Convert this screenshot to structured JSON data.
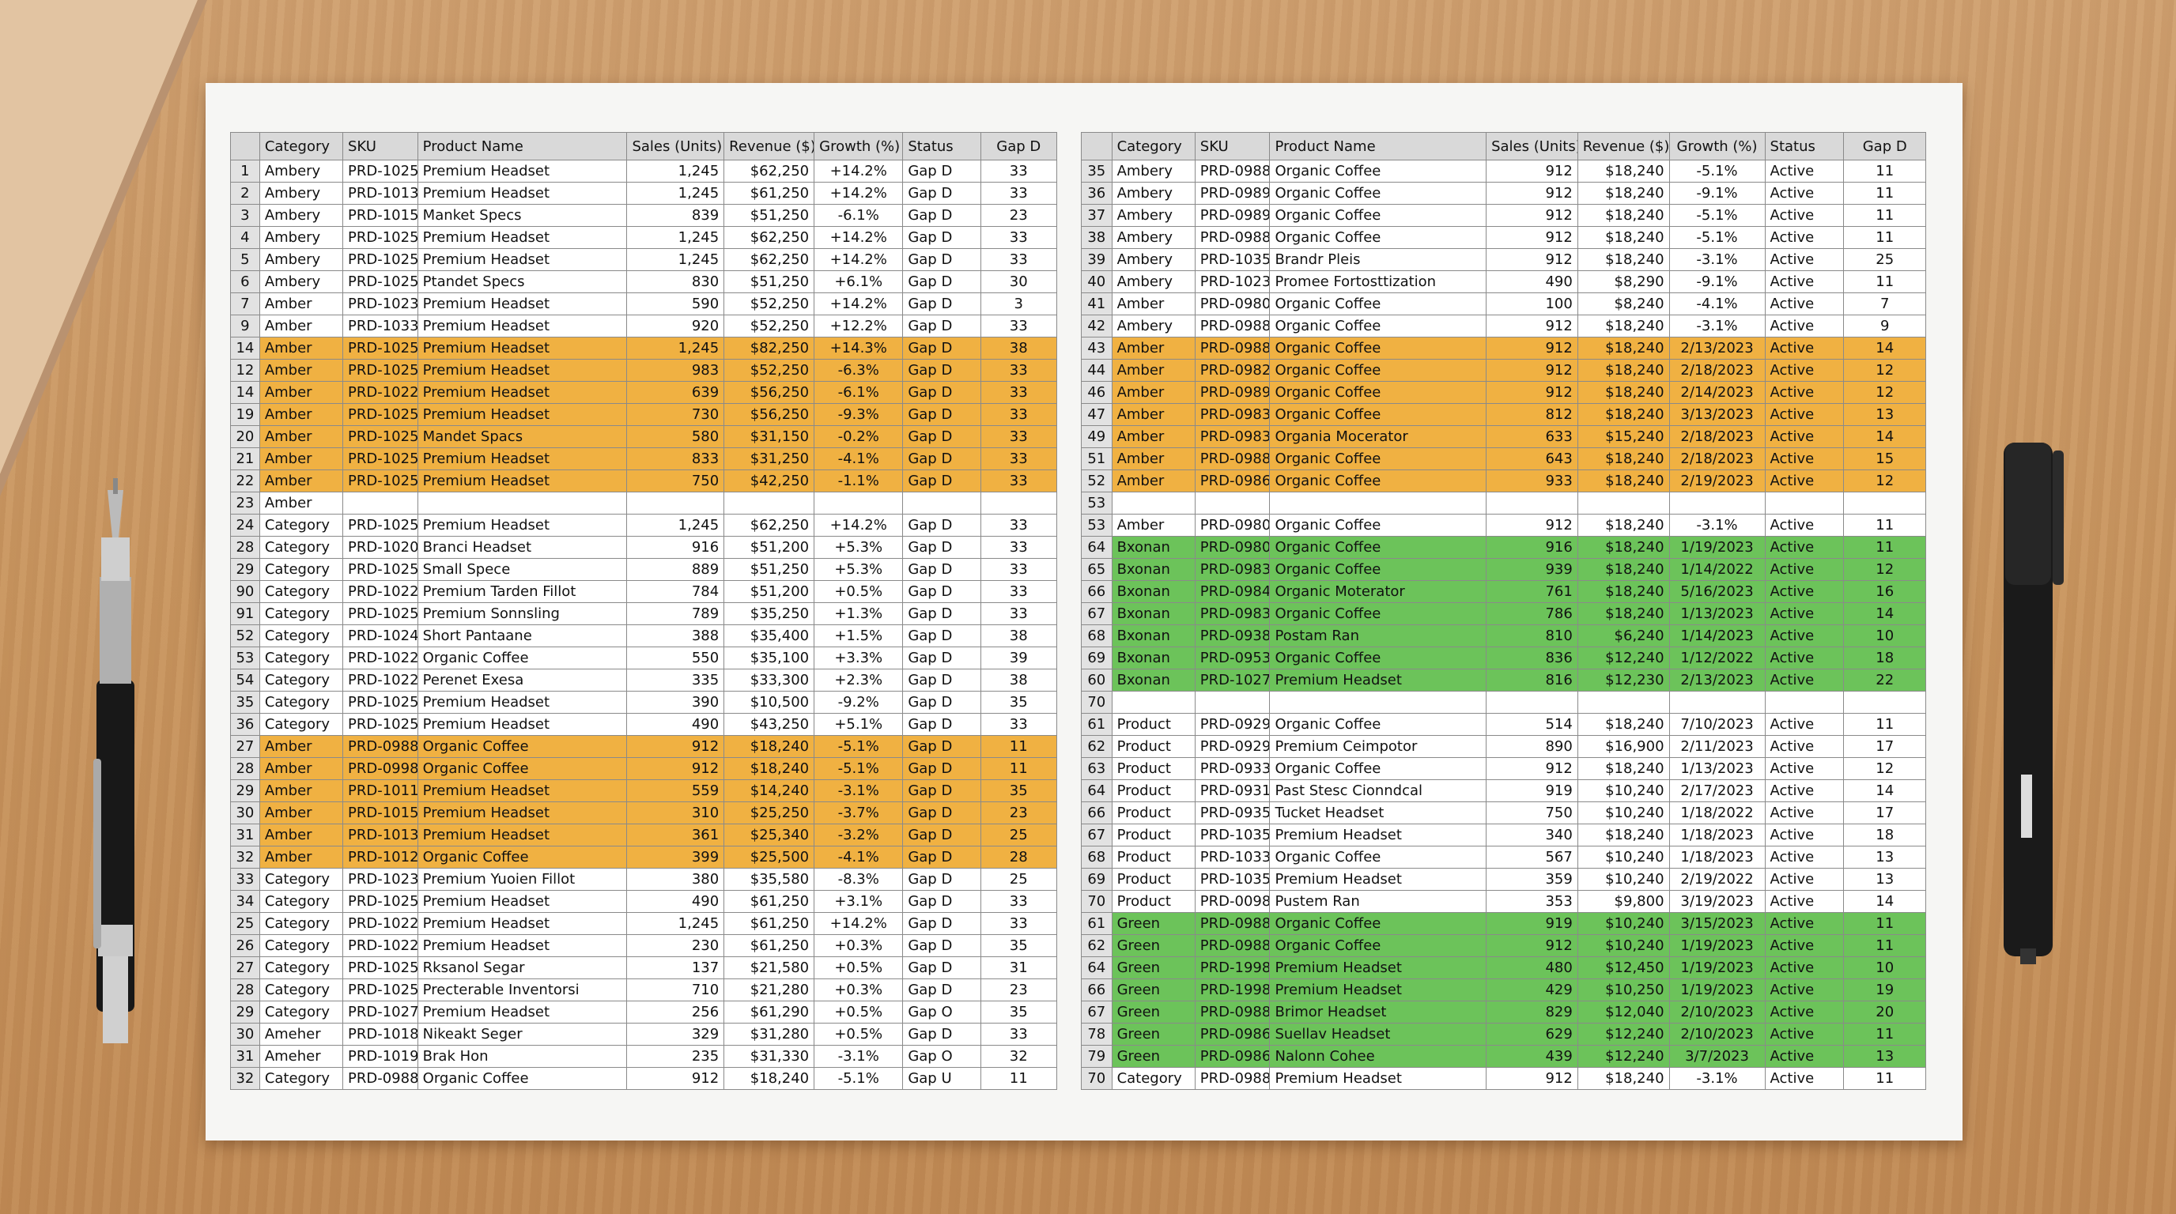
{
  "tables": [
    {
      "headers": [
        null,
        "Category",
        "SKU",
        "Product Name",
        "Sales (Units)",
        "Revenue ($)",
        "Growth (%)",
        "Status",
        "Gap D"
      ],
      "rows": [
        [
          "1",
          "Ambery",
          "PRD-1025",
          "Premium Headset",
          "1,245",
          "$62,250",
          "+14.2%",
          "Gap D",
          "33"
        ],
        [
          "2",
          "Ambery",
          "PRD-1013",
          "Premium Headset",
          "1,245",
          "$61,250",
          "+14.2%",
          "Gap D",
          "33"
        ],
        [
          "3",
          "Ambery",
          "PRD-1015",
          "Manket Specs",
          "839",
          "$51,250",
          "-6.1%",
          "Gap D",
          "23"
        ],
        [
          "4",
          "Ambery",
          "PRD-1025",
          "Premium Headset",
          "1,245",
          "$62,250",
          "+14.2%",
          "Gap D",
          "33"
        ],
        [
          "5",
          "Ambery",
          "PRD-1025",
          "Premium Headset",
          "1,245",
          "$62,250",
          "+14.2%",
          "Gap D",
          "33"
        ],
        [
          "6",
          "Ambery",
          "PRD-1025",
          "Ptandet Specs",
          "830",
          "$51,250",
          "+6.1%",
          "Gap D",
          "30"
        ],
        [
          "7",
          "Amber",
          "PRD-1023",
          "Premium Headset",
          "590",
          "$52,250",
          "+14.2%",
          "Gap D",
          "3"
        ],
        [
          "9",
          "Amber",
          "PRD-1033",
          "Premium Headset",
          "920",
          "$52,250",
          "+12.2%",
          "Gap D",
          "33"
        ],
        [
          "14",
          "Amber",
          "PRD-1025",
          "Premium Headset",
          "1,245",
          "$82,250",
          "+14.3%",
          "Gap D",
          "38"
        ],
        [
          "12",
          "Amber",
          "PRD-1025",
          "Premium Headset",
          "983",
          "$52,250",
          "-6.3%",
          "Gap D",
          "33"
        ],
        [
          "14",
          "Amber",
          "PRD-1022",
          "Premium Headset",
          "639",
          "$56,250",
          "-6.1%",
          "Gap D",
          "33"
        ],
        [
          "19",
          "Amber",
          "PRD-1025",
          "Premium Headset",
          "730",
          "$56,250",
          "-9.3%",
          "Gap D",
          "33"
        ],
        [
          "20",
          "Amber",
          "PRD-1025",
          "Mandet Spacs",
          "580",
          "$31,150",
          "-0.2%",
          "Gap D",
          "33"
        ],
        [
          "21",
          "Amber",
          "PRD-1025",
          "Premium Headset",
          "833",
          "$31,250",
          "-4.1%",
          "Gap D",
          "33"
        ],
        [
          "22",
          "Amber",
          "PRD-1025",
          "Premium Headset",
          "750",
          "$42,250",
          "-1.1%",
          "Gap D",
          "33"
        ],
        [
          "23",
          "Amber",
          null,
          null,
          null,
          null,
          null,
          null,
          null
        ],
        [
          "24",
          "Category",
          "PRD-1025",
          "Premium Headset",
          "1,245",
          "$62,250",
          "+14.2%",
          "Gap D",
          "33"
        ],
        [
          "28",
          "Category",
          "PRD-1020",
          "Branci Headset",
          "916",
          "$51,200",
          "+5.3%",
          "Gap D",
          "33"
        ],
        [
          "29",
          "Category",
          "PRD-1025",
          "Small Spece",
          "889",
          "$51,250",
          "+5.3%",
          "Gap D",
          "33"
        ],
        [
          "90",
          "Category",
          "PRD-1022",
          "Premium Tarden Fillot",
          "784",
          "$51,200",
          "+0.5%",
          "Gap D",
          "33"
        ],
        [
          "91",
          "Category",
          "PRD-1025",
          "Premium Sonnsling",
          "789",
          "$35,250",
          "+1.3%",
          "Gap D",
          "33"
        ],
        [
          "52",
          "Category",
          "PRD-1024",
          "Short Pantaane",
          "388",
          "$35,400",
          "+1.5%",
          "Gap D",
          "38"
        ],
        [
          "53",
          "Category",
          "PRD-1022",
          "Organic Coffee",
          "550",
          "$35,100",
          "+3.3%",
          "Gap D",
          "39"
        ],
        [
          "54",
          "Category",
          "PRD-1022",
          "Perenet Exesa",
          "335",
          "$33,300",
          "+2.3%",
          "Gap D",
          "38"
        ],
        [
          "35",
          "Category",
          "PRD-1025",
          "Premium Headset",
          "390",
          "$10,500",
          "-9.2%",
          "Gap D",
          "35"
        ],
        [
          "36",
          "Category",
          "PRD-1025",
          "Premium Headset",
          "490",
          "$43,250",
          "+5.1%",
          "Gap D",
          "33"
        ],
        [
          "27",
          "Amber",
          "PRD-0988",
          "Organic Coffee",
          "912",
          "$18,240",
          "-5.1%",
          "Gap D",
          "11"
        ],
        [
          "28",
          "Amber",
          "PRD-0998",
          "Organic Coffee",
          "912",
          "$18,240",
          "-5.1%",
          "Gap D",
          "11"
        ],
        [
          "29",
          "Amber",
          "PRD-1011",
          "Premium Headset",
          "559",
          "$14,240",
          "-3.1%",
          "Gap D",
          "35"
        ],
        [
          "30",
          "Amber",
          "PRD-1015",
          "Premium Headset",
          "310",
          "$25,250",
          "-3.7%",
          "Gap D",
          "23"
        ],
        [
          "31",
          "Amber",
          "PRD-1013",
          "Premium Headset",
          "361",
          "$25,340",
          "-3.2%",
          "Gap D",
          "25"
        ],
        [
          "32",
          "Amber",
          "PRD-1012",
          "Organic Coffee",
          "399",
          "$25,500",
          "-4.1%",
          "Gap D",
          "28"
        ],
        [
          "33",
          "Category",
          "PRD-1023",
          "Premium Yuoien Fillot",
          "380",
          "$35,580",
          "-8.3%",
          "Gap D",
          "25"
        ],
        [
          "34",
          "Category",
          "PRD-1025",
          "Premium Headset",
          "490",
          "$61,250",
          "+3.1%",
          "Gap D",
          "33"
        ],
        [
          "25",
          "Category",
          "PRD-1022",
          "Premium Headset",
          "1,245",
          "$61,250",
          "+14.2%",
          "Gap D",
          "33"
        ],
        [
          "26",
          "Category",
          "PRD-1022",
          "Premium Headset",
          "230",
          "$61,250",
          "+0.3%",
          "Gap D",
          "35"
        ],
        [
          "27",
          "Category",
          "PRD-1025",
          "Rksanol Segar",
          "137",
          "$21,580",
          "+0.5%",
          "Gap D",
          "31"
        ],
        [
          "28",
          "Category",
          "PRD-1025",
          "Precterable Inventorsi",
          "710",
          "$21,280",
          "+0.3%",
          "Gap D",
          "23"
        ],
        [
          "29",
          "Category",
          "PRD-1027",
          "Premium Headset",
          "256",
          "$61,290",
          "+0.5%",
          "Gap O",
          "35"
        ],
        [
          "30",
          "Ameher",
          "PRD-1018",
          "Nikeakt Seger",
          "329",
          "$31,280",
          "+0.5%",
          "Gap D",
          "33"
        ],
        [
          "31",
          "Ameher",
          "PRD-1019",
          "Brak Hon",
          "235",
          "$31,330",
          "-3.1%",
          "Gap O",
          "32"
        ],
        [
          "32",
          "Category",
          "PRD-0988",
          "Organic Coffee",
          "912",
          "$18,240",
          "-5.1%",
          "Gap U",
          "11"
        ]
      ],
      "row_colors": [
        "#ffffff",
        "#ffffff",
        "#ffffff",
        "#ffffff",
        "#ffffff",
        "#ffffff",
        "#ffffff",
        "#ffffff",
        "#f0b142",
        "#f0b142",
        "#f0b142",
        "#f0b142",
        "#f0b142",
        "#f0b142",
        "#f0b142",
        "#ffffff",
        "#ffffff",
        "#ffffff",
        "#ffffff",
        "#ffffff",
        "#ffffff",
        "#ffffff",
        "#ffffff",
        "#ffffff",
        "#ffffff",
        "#ffffff",
        "#f0b142",
        "#f0b142",
        "#f0b142",
        "#f0b142",
        "#f0b142",
        "#f0b142",
        "#ffffff",
        "#ffffff",
        "#ffffff",
        "#ffffff",
        "#ffffff",
        "#ffffff",
        "#ffffff",
        "#ffffff",
        "#ffffff",
        "#ffffff"
      ]
    },
    {
      "headers": [
        null,
        "Category",
        "SKU",
        "Product Name",
        "Sales (Units)",
        "Revenue ($)",
        "Growth (%)",
        "Status",
        "Gap D"
      ],
      "rows": [
        [
          "35",
          "Ambery",
          "PRD-0988",
          "Organic Coffee",
          "912",
          "$18,240",
          "-5.1%",
          "Active",
          "11"
        ],
        [
          "36",
          "Ambery",
          "PRD-0989",
          "Organic Coffee",
          "912",
          "$18,240",
          "-9.1%",
          "Active",
          "11"
        ],
        [
          "37",
          "Ambery",
          "PRD-0989",
          "Organic Coffee",
          "912",
          "$18,240",
          "-5.1%",
          "Active",
          "11"
        ],
        [
          "38",
          "Ambery",
          "PRD-0988",
          "Organic Coffee",
          "912",
          "$18,240",
          "-5.1%",
          "Active",
          "11"
        ],
        [
          "39",
          "Ambery",
          "PRD-1035",
          "Brandr Pleis",
          "912",
          "$18,240",
          "-3.1%",
          "Active",
          "25"
        ],
        [
          "40",
          "Ambery",
          "PRD-1023",
          "Promee Fortosttization",
          "490",
          "$8,290",
          "-9.1%",
          "Active",
          "11"
        ],
        [
          "41",
          "Amber",
          "PRD-0980",
          "Organic Coffee",
          "100",
          "$8,240",
          "-4.1%",
          "Active",
          "7"
        ],
        [
          "42",
          "Ambery",
          "PRD-0988",
          "Organic Coffee",
          "912",
          "$18,240",
          "-3.1%",
          "Active",
          "9"
        ],
        [
          "43",
          "Amber",
          "PRD-0988",
          "Organic Coffee",
          "912",
          "$18,240",
          "2/13/2023",
          "Active",
          "14"
        ],
        [
          "44",
          "Amber",
          "PRD-0982",
          "Organic Coffee",
          "912",
          "$18,240",
          "2/18/2023",
          "Active",
          "12"
        ],
        [
          "46",
          "Amber",
          "PRD-0989",
          "Organic Coffee",
          "912",
          "$18,240",
          "2/14/2023",
          "Active",
          "12"
        ],
        [
          "47",
          "Amber",
          "PRD-0983",
          "Organic Coffee",
          "812",
          "$18,240",
          "3/13/2023",
          "Active",
          "13"
        ],
        [
          "49",
          "Amber",
          "PRD-0983",
          "Organia Mocerator",
          "633",
          "$15,240",
          "2/18/2023",
          "Active",
          "14"
        ],
        [
          "51",
          "Amber",
          "PRD-0988",
          "Organic Coffee",
          "643",
          "$18,240",
          "2/18/2023",
          "Active",
          "15"
        ],
        [
          "52",
          "Amber",
          "PRD-0986",
          "Organic Coffee",
          "933",
          "$18,240",
          "2/19/2023",
          "Active",
          "12"
        ],
        [
          "53",
          null,
          null,
          null,
          null,
          null,
          null,
          null,
          null
        ],
        [
          "53",
          "Amber",
          "PRD-0980",
          "Organic Coffee",
          "912",
          "$18,240",
          "-3.1%",
          "Active",
          "11"
        ],
        [
          "64",
          "Bxonan",
          "PRD-0980",
          "Organic Coffee",
          "916",
          "$18,240",
          "1/19/2023",
          "Active",
          "11"
        ],
        [
          "65",
          "Bxonan",
          "PRD-0983",
          "Organic Coffee",
          "939",
          "$18,240",
          "1/14/2022",
          "Active",
          "12"
        ],
        [
          "66",
          "Bxonan",
          "PRD-0984",
          "Organic Moterator",
          "761",
          "$18,240",
          "5/16/2023",
          "Active",
          "16"
        ],
        [
          "67",
          "Bxonan",
          "PRD-0983",
          "Organic Coffee",
          "786",
          "$18,240",
          "1/13/2023",
          "Active",
          "14"
        ],
        [
          "68",
          "Bxonan",
          "PRD-0938",
          "Postam Ran",
          "810",
          "$6,240",
          "1/14/2023",
          "Active",
          "10"
        ],
        [
          "69",
          "Bxonan",
          "PRD-0953",
          "Organic Coffee",
          "836",
          "$12,240",
          "1/12/2022",
          "Active",
          "18"
        ],
        [
          "60",
          "Bxonan",
          "PRD-1027",
          "Premium Headset",
          "816",
          "$12,230",
          "2/13/2023",
          "Active",
          "22"
        ],
        [
          "70",
          null,
          null,
          null,
          null,
          null,
          null,
          null,
          null
        ],
        [
          "61",
          "Product",
          "PRD-0929",
          "Organic Coffee",
          "514",
          "$18,240",
          "7/10/2023",
          "Active",
          "11"
        ],
        [
          "62",
          "Product",
          "PRD-0929",
          "Premium Ceimpotor",
          "890",
          "$16,900",
          "2/11/2023",
          "Active",
          "17"
        ],
        [
          "63",
          "Product",
          "PRD-0933",
          "Organic Coffee",
          "912",
          "$18,240",
          "1/13/2023",
          "Active",
          "12"
        ],
        [
          "64",
          "Product",
          "PRD-0931",
          "Past Stesc Cionndcal",
          "919",
          "$10,240",
          "2/17/2023",
          "Active",
          "14"
        ],
        [
          "66",
          "Product",
          "PRD-0935",
          "Tucket Headset",
          "750",
          "$10,240",
          "1/18/2022",
          "Active",
          "17"
        ],
        [
          "67",
          "Product",
          "PRD-1035",
          "Premium Headset",
          "340",
          "$18,240",
          "1/18/2023",
          "Active",
          "18"
        ],
        [
          "68",
          "Product",
          "PRD-1033",
          "Organic Coffee",
          "567",
          "$10,240",
          "1/18/2023",
          "Active",
          "13"
        ],
        [
          "69",
          "Product",
          "PRD-1035",
          "Premium Headset",
          "359",
          "$10,240",
          "2/19/2022",
          "Active",
          "13"
        ],
        [
          "70",
          "Product",
          "PRD-0098",
          "Pustem Ran",
          "353",
          "$9,800",
          "3/19/2023",
          "Active",
          "14"
        ],
        [
          "61",
          "Green",
          "PRD-0988",
          "Organic Coffee",
          "919",
          "$10,240",
          "3/15/2023",
          "Active",
          "11"
        ],
        [
          "62",
          "Green",
          "PRD-0988",
          "Organic Coffee",
          "912",
          "$10,240",
          "1/19/2023",
          "Active",
          "11"
        ],
        [
          "64",
          "Green",
          "PRD-1998",
          "Premium Headset",
          "480",
          "$12,450",
          "1/19/2023",
          "Active",
          "10"
        ],
        [
          "66",
          "Green",
          "PRD-1998",
          "Premium Headset",
          "429",
          "$10,250",
          "1/19/2023",
          "Active",
          "19"
        ],
        [
          "67",
          "Green",
          "PRD-0988",
          "Brimor Headset",
          "829",
          "$12,040",
          "2/10/2023",
          "Active",
          "20"
        ],
        [
          "78",
          "Green",
          "PRD-0986",
          "Suellav Headset",
          "629",
          "$12,240",
          "2/10/2023",
          "Active",
          "11"
        ],
        [
          "79",
          "Green",
          "PRD-0986",
          "Nalonn Cohee",
          "439",
          "$12,240",
          "3/7/2023",
          "Active",
          "13"
        ],
        [
          "70",
          "Category",
          "PRD-0988",
          "Premium Headset",
          "912",
          "$18,240",
          "-3.1%",
          "Active",
          "11"
        ]
      ],
      "row_colors": [
        "#ffffff",
        "#ffffff",
        "#ffffff",
        "#ffffff",
        "#ffffff",
        "#ffffff",
        "#ffffff",
        "#ffffff",
        "#f0b142",
        "#f0b142",
        "#f0b142",
        "#f0b142",
        "#f0b142",
        "#f0b142",
        "#f0b142",
        "#ffffff",
        "#ffffff",
        "#6cc35a",
        "#6cc35a",
        "#6cc35a",
        "#6cc35a",
        "#6cc35a",
        "#6cc35a",
        "#6cc35a",
        "#ffffff",
        "#ffffff",
        "#ffffff",
        "#ffffff",
        "#ffffff",
        "#ffffff",
        "#ffffff",
        "#ffffff",
        "#ffffff",
        "#ffffff",
        "#6cc35a",
        "#6cc35a",
        "#6cc35a",
        "#6cc35a",
        "#6cc35a",
        "#6cc35a",
        "#6cc35a",
        "#ffffff"
      ]
    }
  ]
}
